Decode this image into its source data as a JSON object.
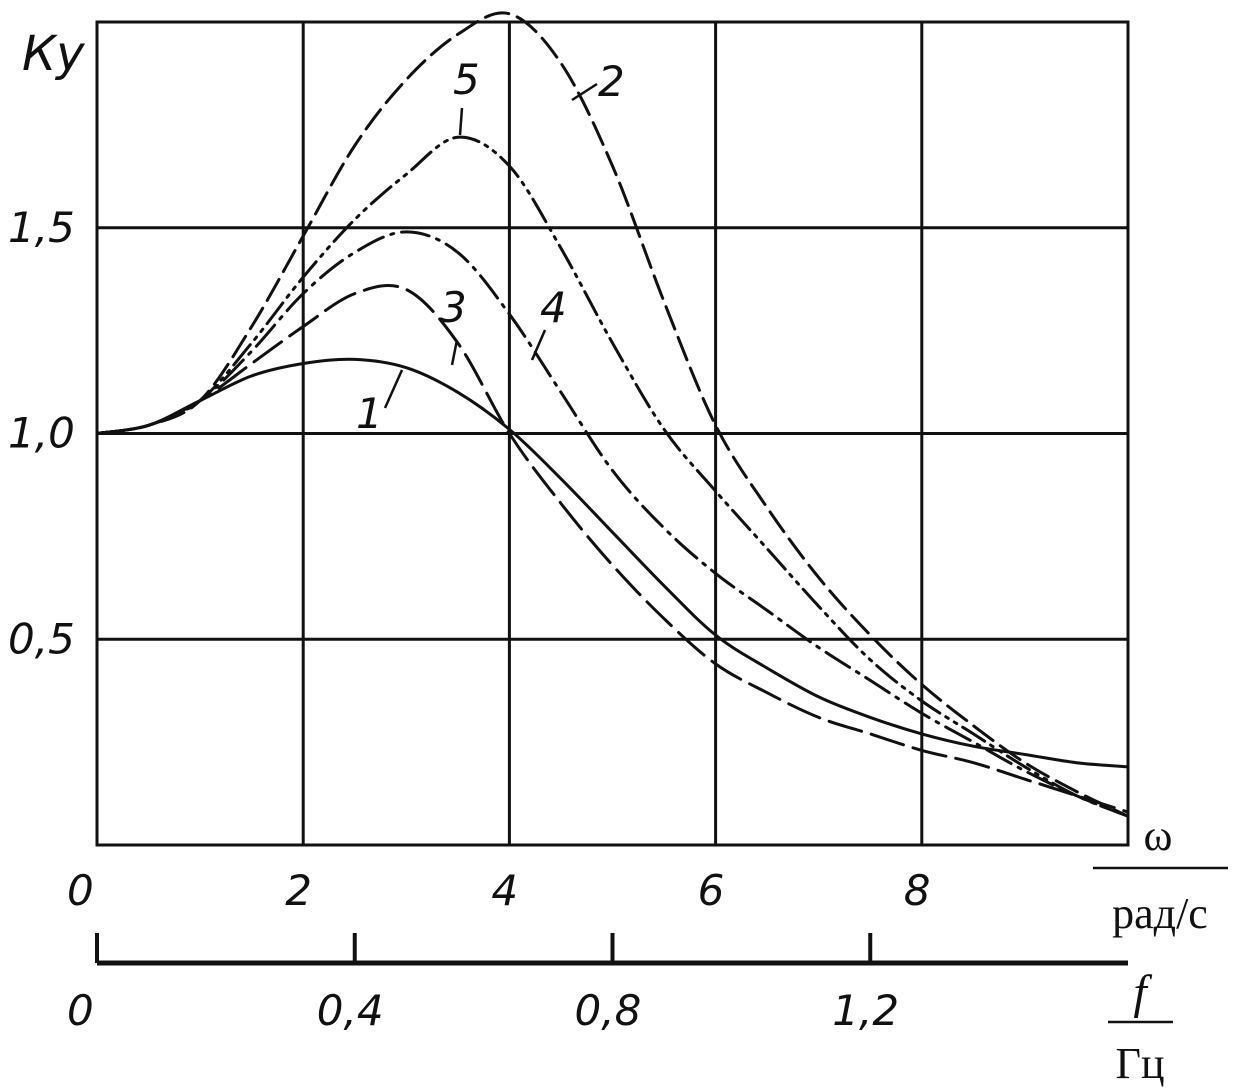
{
  "chart_data": {
    "type": "line",
    "ylabel": "Ку",
    "xlabel_omega": "ω",
    "xunit_omega": "рад/с",
    "xlabel_f": "f",
    "xunit_f": "Гц",
    "xlim": [
      0,
      10
    ],
    "ylim": [
      0,
      2
    ],
    "x_ticks": [
      {
        "value": 0,
        "label": "0"
      },
      {
        "value": 2,
        "label": "2"
      },
      {
        "value": 4,
        "label": "4"
      },
      {
        "value": 6,
        "label": "6"
      },
      {
        "value": 8,
        "label": "8"
      }
    ],
    "y_ticks": [
      {
        "value": 0.5,
        "label": "0,5"
      },
      {
        "value": 1.0,
        "label": "1,0"
      },
      {
        "value": 1.5,
        "label": "1,5"
      }
    ],
    "f_axis": {
      "range": [
        0,
        1.6
      ],
      "ticks": [
        {
          "value": 0,
          "label": "0"
        },
        {
          "value": 0.4,
          "label": "0,4"
        },
        {
          "value": 0.8,
          "label": "0,8"
        },
        {
          "value": 1.2,
          "label": "1,2"
        }
      ]
    },
    "grid": true,
    "series": [
      {
        "label": "1",
        "style": "solid",
        "x": [
          0,
          0.5,
          1,
          1.5,
          2,
          2.5,
          3,
          3.5,
          4,
          4.5,
          5,
          5.5,
          6,
          6.5,
          7,
          7.5,
          8,
          8.5,
          9,
          9.5,
          10
        ],
        "y": [
          1.0,
          1.02,
          1.08,
          1.14,
          1.17,
          1.18,
          1.16,
          1.1,
          1.01,
          0.89,
          0.76,
          0.63,
          0.51,
          0.43,
          0.36,
          0.31,
          0.27,
          0.24,
          0.22,
          0.2,
          0.19
        ]
      },
      {
        "label": "2",
        "style": "dashed",
        "x": [
          0,
          0.5,
          1,
          1.5,
          2,
          2.5,
          3,
          3.5,
          4,
          4.5,
          5,
          5.5,
          6,
          6.5,
          7,
          7.5,
          8,
          8.5,
          9,
          9.5,
          10
        ],
        "y": [
          1.0,
          1.02,
          1.08,
          1.26,
          1.48,
          1.7,
          1.86,
          1.97,
          2.02,
          1.9,
          1.65,
          1.32,
          1.02,
          0.82,
          0.65,
          0.51,
          0.39,
          0.29,
          0.2,
          0.13,
          0.07
        ]
      },
      {
        "label": "3",
        "style": "long-dash",
        "x": [
          0,
          0.5,
          1,
          1.5,
          2,
          2.5,
          3,
          3.5,
          4,
          4.5,
          5,
          5.5,
          6,
          6.5,
          7,
          7.5,
          8,
          8.5,
          9,
          9.5,
          10
        ],
        "y": [
          1.0,
          1.02,
          1.08,
          1.17,
          1.26,
          1.34,
          1.35,
          1.22,
          1.0,
          0.83,
          0.68,
          0.55,
          0.44,
          0.37,
          0.31,
          0.27,
          0.23,
          0.2,
          0.16,
          0.12,
          0.08
        ]
      },
      {
        "label": "4",
        "style": "dash-dot",
        "x": [
          0,
          0.5,
          1,
          1.5,
          2,
          2.5,
          3,
          3.5,
          4,
          4.5,
          5,
          5.5,
          6,
          6.5,
          7,
          7.5,
          8,
          8.5,
          9,
          9.5,
          10
        ],
        "y": [
          1.0,
          1.02,
          1.08,
          1.2,
          1.34,
          1.44,
          1.49,
          1.44,
          1.29,
          1.1,
          0.91,
          0.77,
          0.66,
          0.57,
          0.48,
          0.4,
          0.32,
          0.25,
          0.18,
          0.12,
          0.07
        ]
      },
      {
        "label": "5",
        "style": "dash-dot-dot",
        "x": [
          0,
          0.5,
          1,
          1.5,
          2,
          2.5,
          3,
          3.5,
          4,
          4.5,
          5,
          5.5,
          6,
          6.5,
          7,
          7.5,
          8,
          8.5,
          9,
          9.5,
          10
        ],
        "y": [
          1.0,
          1.02,
          1.08,
          1.22,
          1.38,
          1.52,
          1.63,
          1.72,
          1.65,
          1.45,
          1.22,
          1.01,
          0.86,
          0.72,
          0.58,
          0.45,
          0.35,
          0.27,
          0.19,
          0.12,
          0.07
        ]
      }
    ]
  }
}
